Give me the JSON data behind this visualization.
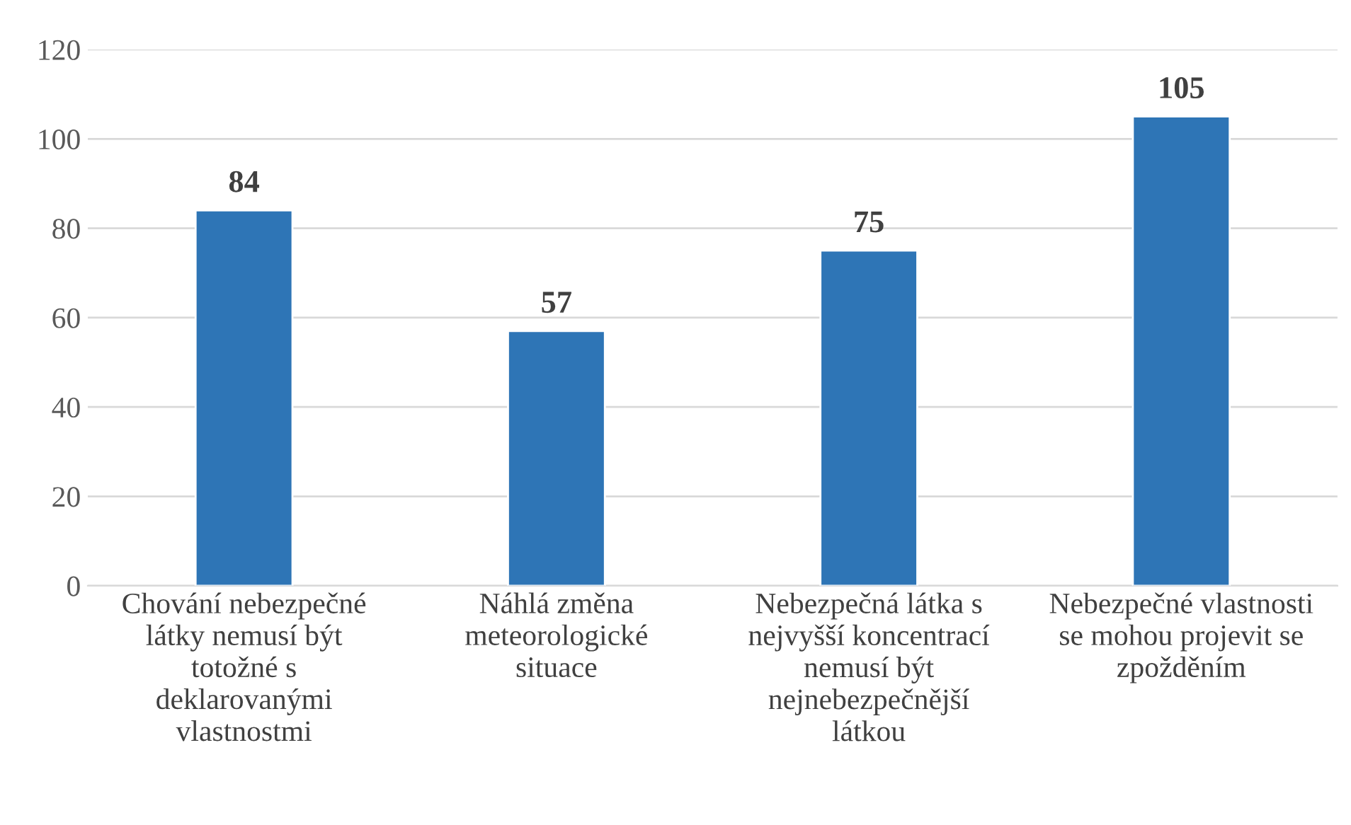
{
  "chart_data": {
    "type": "bar",
    "categories": [
      "Chování nebezpečné\nlátky nemusí být\ntotožné s\ndeklarovanými\nvlastnostmi",
      "Náhlá změna\nmeteorologické\nsituace",
      "Nebezpečná látka s\nnejvyšší koncentrací\nnemusí být\nnejnebezpečnější\nlátkou",
      "Nebezpečné vlastnosti\nse mohou projevit se\nzpožděním"
    ],
    "values": [
      84,
      57,
      75,
      105
    ],
    "color": "#2e75b6",
    "ylim": [
      0,
      120
    ],
    "yticks": [
      0,
      20,
      40,
      60,
      80,
      100,
      120
    ],
    "grid": "y",
    "data_labels": true
  }
}
